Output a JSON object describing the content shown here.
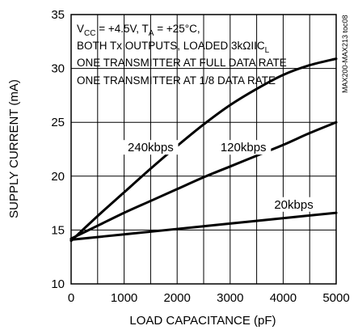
{
  "chart_data": {
    "type": "line",
    "xlabel": "LOAD CAPACITANCE (pF)",
    "ylabel": "SUPPLY CURRENT (mA)",
    "xlim": [
      0,
      5000
    ],
    "ylim": [
      10,
      35
    ],
    "x_ticks": [
      0,
      1000,
      2000,
      3000,
      4000,
      5000
    ],
    "y_ticks": [
      10,
      15,
      20,
      25,
      30,
      35
    ],
    "grid": true,
    "annotations": {
      "cond_line1_prefix": "V",
      "cond_line1_sub1": "CC",
      "cond_line1_mid": " = +4.5V, T",
      "cond_line1_sub2": "A",
      "cond_line1_suffix": " = +25°C,",
      "cond_line2_main": "BOTH Tx OUTPUTS, LOADED 3kΩIIC",
      "cond_line2_sub": "L",
      "cond_line3": "ONE TRANSMITTER AT FULL DATA RATE",
      "cond_line4": "ONE TRANSMITTER AT 1/8 DATA RATE",
      "side_id": "MAX200-MAX213 toc08"
    },
    "series": [
      {
        "name": "240kbps",
        "x": [
          0,
          500,
          1000,
          1500,
          2000,
          2500,
          3000,
          3500,
          4000,
          4500,
          5000
        ],
        "y": [
          14.0,
          16.3,
          18.5,
          20.7,
          22.8,
          24.8,
          26.6,
          28.1,
          29.4,
          30.3,
          30.9
        ]
      },
      {
        "name": "120kbps",
        "x": [
          0,
          500,
          1000,
          1500,
          2000,
          2500,
          3000,
          3500,
          4000,
          4500,
          5000
        ],
        "y": [
          14.2,
          15.4,
          16.6,
          17.7,
          18.8,
          19.9,
          20.9,
          21.9,
          22.9,
          24.0,
          25.0
        ]
      },
      {
        "name": "20kbps",
        "x": [
          0,
          1000,
          2000,
          3000,
          4000,
          5000
        ],
        "y": [
          14.1,
          14.6,
          15.1,
          15.6,
          16.1,
          16.6
        ]
      }
    ]
  }
}
